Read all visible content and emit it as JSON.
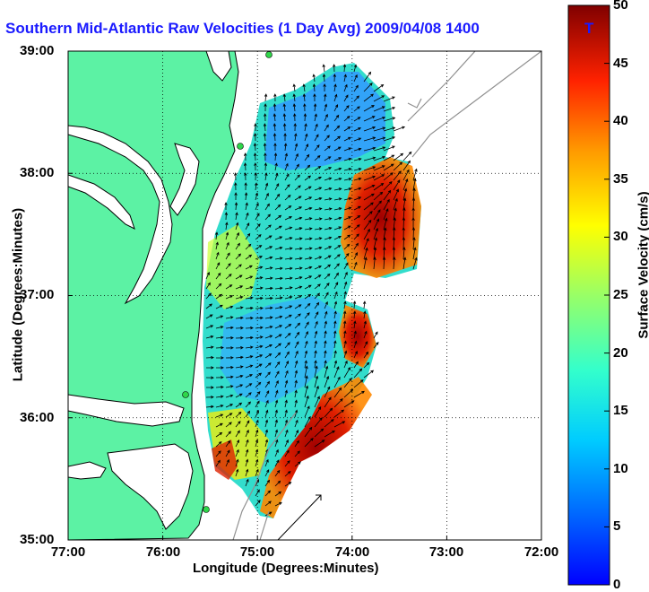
{
  "title": "Southern Mid-Atlantic Raw Velocities (1 Day Avg) 2009/04/08 1400",
  "title_tail": "T",
  "x_axis_title": "Longitude (Degrees:Minutes)",
  "y_axis_title": "Latitude (Degrees:Minutes)",
  "colorbar_title": "Surface Velocity (cm/s)",
  "x_ticks": [
    "77:00",
    "76:00",
    "75:00",
    "74:00",
    "73:00",
    "72:00"
  ],
  "y_ticks": [
    "39:00",
    "38:00",
    "37:00",
    "36:00",
    "35:00"
  ],
  "colorbar_ticks": [
    "50",
    "45",
    "40",
    "35",
    "30",
    "25",
    "20",
    "15",
    "10",
    "5",
    "0"
  ],
  "colors": {
    "land": "#5cf2a4",
    "coast_line": "#000000",
    "bathymetry": "#909090",
    "station": "#2fd64a",
    "title": "#1a1aff",
    "arrow": "#000000"
  },
  "map_extent": {
    "lon": [
      -77,
      -72
    ],
    "lat": [
      35,
      39
    ]
  },
  "velocity_range_cm_s": [
    0,
    50
  ],
  "colormap": "jet",
  "grid": "dotted"
}
